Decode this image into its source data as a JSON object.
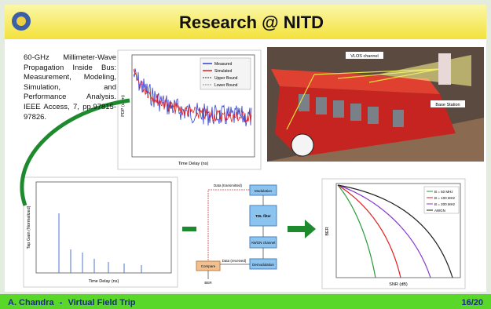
{
  "header": {
    "title": "Research @ NITD"
  },
  "reference": {
    "text": "60-GHz Millimeter-Wave Propagation Inside Bus: Measurement, Modeling, Simulation, and Performance Analysis. IEEE Access, 7, pp.97815-97826."
  },
  "pdp_plot": {
    "legend": [
      "Measured",
      "Simulated",
      "Upper Bound",
      "Lower Bound"
    ],
    "x_label": "Time Delay (ns)",
    "y_label": "PDP (dBm)"
  },
  "bus_figure": {
    "labels": [
      "VLOS channel",
      "Base Station"
    ]
  },
  "impulse_plot": {
    "x_label": "Time Delay (ns)",
    "y_label": "Tap Gain (Normalized)"
  },
  "block_diagram": {
    "blocks": [
      "Modulation",
      "TDL filter",
      "AWGN channel",
      "Demodulation",
      "Compare"
    ],
    "labels": [
      "Data (transmitted)",
      "Data (received)",
      "BER"
    ]
  },
  "ber_plot": {
    "legend": [
      "B = 50 MHz",
      "B = 100 MHz",
      "B = 200 MHz",
      "AWGN"
    ],
    "x_label": "SNR (dB)",
    "y_label": "BER"
  },
  "footer": {
    "author": "A. Chandra",
    "separator": "-",
    "event": "Virtual Field Trip",
    "page": "16/20"
  }
}
